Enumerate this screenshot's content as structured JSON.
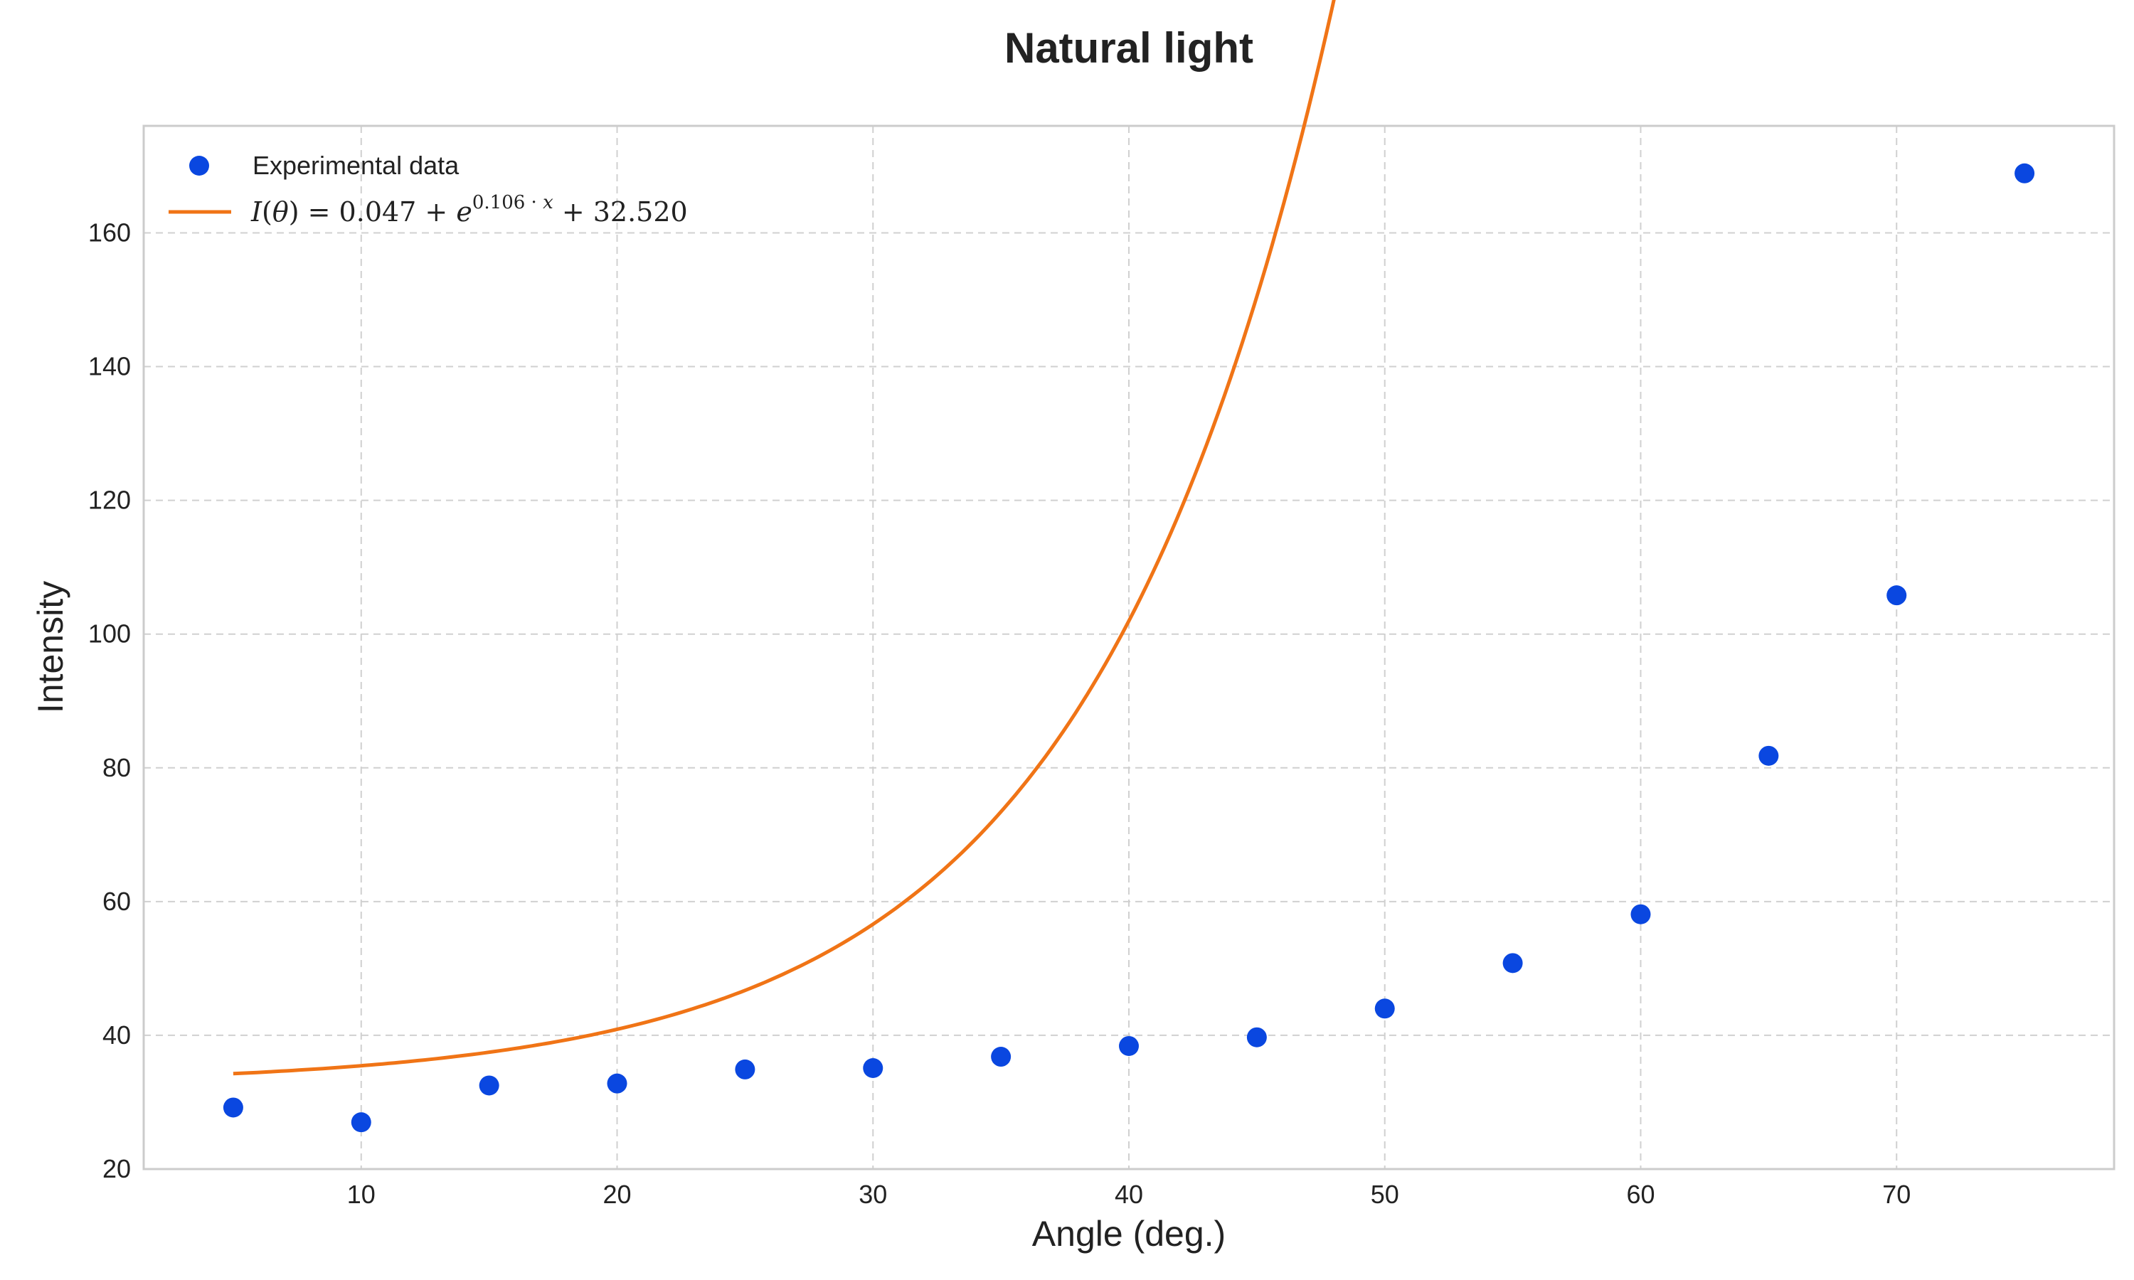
{
  "chart_data": {
    "type": "scatter",
    "title": "Natural light",
    "xlabel": "Angle (deg.)",
    "ylabel": "Intensity",
    "xlim": [
      1.5,
      78.5
    ],
    "ylim": [
      20,
      176
    ],
    "xticks": [
      10,
      20,
      30,
      40,
      50,
      60,
      70
    ],
    "yticks": [
      20,
      40,
      60,
      80,
      100,
      120,
      140,
      160
    ],
    "grid": true,
    "legend_position": "top-left",
    "series": [
      {
        "name": "Experimental data",
        "kind": "scatter",
        "color": "#0a47e0",
        "x": [
          5,
          10,
          15,
          20,
          25,
          30,
          35,
          40,
          45,
          50,
          55,
          60,
          65,
          70,
          75
        ],
        "y": [
          29.2,
          27.0,
          32.5,
          32.8,
          34.9,
          35.1,
          36.8,
          38.4,
          39.7,
          44.0,
          50.8,
          58.1,
          81.8,
          105.8,
          168.9
        ]
      },
      {
        "name": "I(θ) = 0.047 + e^{0.106·x} + 32.520",
        "kind": "line",
        "color": "#f07416",
        "model": {
          "a": 0.047,
          "k": 0.106,
          "c": 32.52
        },
        "x_range": [
          5,
          75
        ]
      }
    ]
  }
}
